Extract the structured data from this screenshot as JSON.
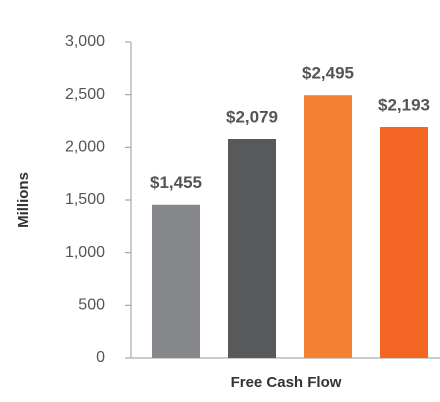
{
  "chart_data": {
    "type": "bar",
    "x_label": "Free Cash Flow",
    "y_label": "Millions",
    "categories": [
      null,
      null,
      null,
      null
    ],
    "values": [
      1455,
      2079,
      2495,
      2193
    ],
    "value_labels": [
      "$1,455",
      "$2,079",
      "$2,495",
      "$2,193"
    ],
    "colors": [
      "#86878b",
      "#58595b",
      "#f58233",
      "#f26522"
    ],
    "ylim": [
      0,
      3000
    ],
    "yticks": [
      0,
      500,
      {
        "value": 1000,
        "label": "1,000"
      },
      {
        "value": 1500,
        "label": "1,500"
      },
      {
        "value": 2000,
        "label": "2,000"
      },
      {
        "value": 2500,
        "label": "2,500"
      },
      {
        "value": 3000,
        "label": "3,000"
      }
    ],
    "grid": false
  }
}
